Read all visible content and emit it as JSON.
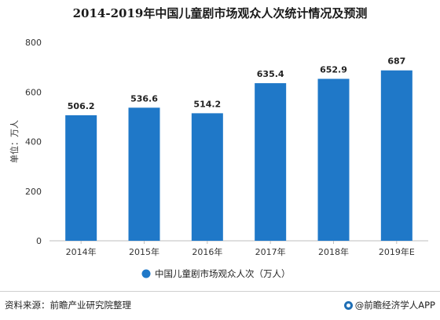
{
  "title": "2014-2019年中国儿童剧市场观众人次统计情况及预测",
  "chart_data": {
    "type": "bar",
    "categories": [
      "2014年",
      "2015年",
      "2016年",
      "2017年",
      "2018年",
      "2019年E"
    ],
    "series": [
      {
        "name": "中国儿童剧市场观众人次（万人）",
        "values": [
          506.2,
          536.6,
          514.2,
          635.4,
          652.9,
          687
        ]
      }
    ],
    "value_labels": [
      "506.2",
      "536.6",
      "514.2",
      "635.4",
      "652.9",
      "687"
    ],
    "ylabel": "单位：万人",
    "xlabel": "",
    "ylim": [
      0,
      800
    ],
    "yticks": [
      0,
      200,
      400,
      600,
      800
    ],
    "grid": false,
    "legend_position": "bottom-center",
    "bar_color": "#1f78c8"
  },
  "footer": {
    "source": "资料来源：前瞻产业研究院整理",
    "brand": "@前瞻经济学人APP"
  }
}
